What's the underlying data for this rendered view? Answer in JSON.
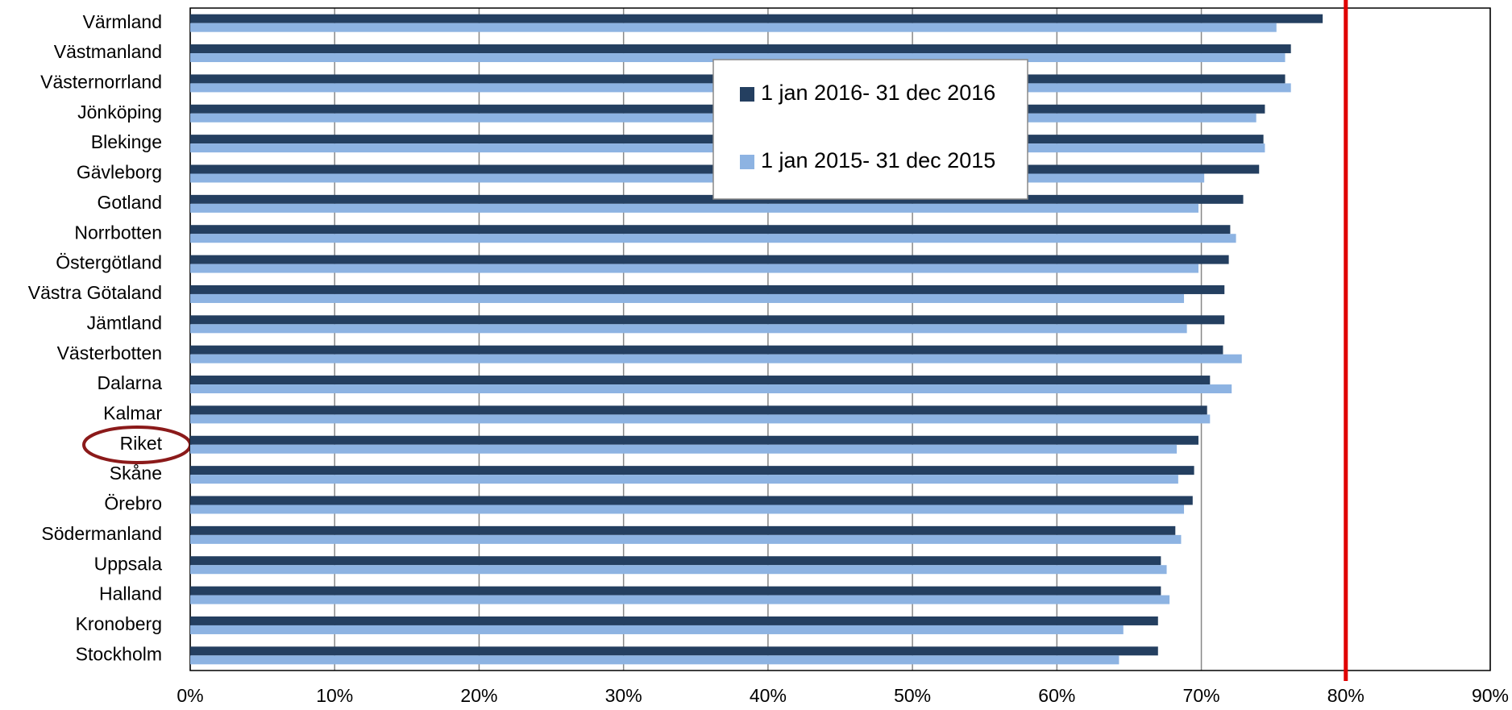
{
  "chart_data": {
    "type": "bar",
    "orientation": "horizontal",
    "categories": [
      "Värmland",
      "Västmanland",
      "Västernorrland",
      "Jönköping",
      "Blekinge",
      "Gävleborg",
      "Gotland",
      "Norrbotten",
      "Östergötland",
      "Västra Götaland",
      "Jämtland",
      "Västerbotten",
      "Dalarna",
      "Kalmar",
      "Riket",
      "Skåne",
      "Örebro",
      "Södermanland",
      "Uppsala",
      "Halland",
      "Kronoberg",
      "Stockholm"
    ],
    "series": [
      {
        "name": "1 jan 2016- 31 dec 2016",
        "color": "#243f60",
        "values": [
          78.4,
          76.2,
          75.8,
          74.4,
          74.3,
          74.0,
          72.9,
          72.0,
          71.9,
          71.6,
          71.6,
          71.5,
          70.6,
          70.4,
          69.8,
          69.5,
          69.4,
          68.2,
          67.2,
          67.2,
          67.0,
          67.0
        ]
      },
      {
        "name": "1 jan 2015- 31 dec 2015",
        "color": "#8db3e2",
        "values": [
          75.2,
          75.8,
          76.2,
          73.8,
          74.4,
          70.2,
          69.8,
          72.4,
          69.8,
          68.8,
          69.0,
          72.8,
          72.1,
          70.6,
          68.3,
          68.4,
          68.8,
          68.6,
          67.6,
          67.8,
          64.6,
          64.3
        ]
      }
    ],
    "xlim": [
      0,
      90
    ],
    "xticks": [
      {
        "value": 0,
        "label": "0%"
      },
      {
        "value": 10,
        "label": "10%"
      },
      {
        "value": 20,
        "label": "20%"
      },
      {
        "value": 30,
        "label": "30%"
      },
      {
        "value": 40,
        "label": "40%"
      },
      {
        "value": 50,
        "label": "50%"
      },
      {
        "value": 60,
        "label": "60%"
      },
      {
        "value": 70,
        "label": "70%"
      },
      {
        "value": 80,
        "label": "80%"
      },
      {
        "value": 90,
        "label": "90%"
      }
    ],
    "grid": true,
    "reference_line": {
      "value": 80,
      "color": "#e00000"
    }
  }
}
